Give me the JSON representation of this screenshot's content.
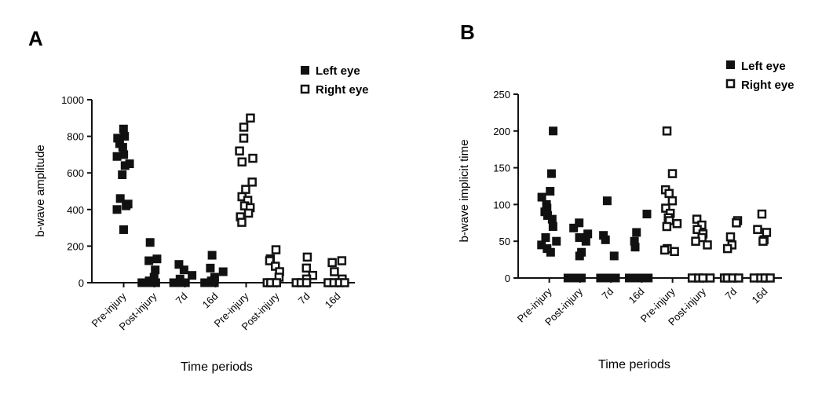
{
  "figure": {
    "panels": [
      {
        "letter": "A"
      },
      {
        "letter": "B"
      }
    ]
  },
  "chart_data": [
    {
      "type": "scatter",
      "panel": "A",
      "title": "",
      "xlabel": "Time periods",
      "ylabel": "b-wave amplitude",
      "ylim": [
        0,
        1000
      ],
      "yticks": [
        0,
        200,
        400,
        600,
        800,
        1000
      ],
      "categories": [
        "Pre-injury",
        "Post-injury",
        "7d",
        "16d",
        "Pre-injury",
        "Post-injury",
        "7d",
        "16d"
      ],
      "legend": {
        "position": "top-right",
        "entries": [
          "Left eye",
          "Right eye"
        ]
      },
      "colors": {
        "left": "#111111",
        "right": "#111111",
        "right_fill": "#ffffff"
      },
      "series": [
        {
          "name": "Left eye",
          "marker": "filled-square",
          "points": [
            {
              "x": "Pre-injury",
              "i": 0,
              "y": 840
            },
            {
              "x": "Pre-injury",
              "i": 0,
              "y": 800
            },
            {
              "x": "Pre-injury",
              "i": 0,
              "y": 790
            },
            {
              "x": "Pre-injury",
              "i": 0,
              "y": 760
            },
            {
              "x": "Pre-injury",
              "i": 0,
              "y": 740
            },
            {
              "x": "Pre-injury",
              "i": 0,
              "y": 700
            },
            {
              "x": "Pre-injury",
              "i": 0,
              "y": 690
            },
            {
              "x": "Pre-injury",
              "i": 0,
              "y": 650
            },
            {
              "x": "Pre-injury",
              "i": 0,
              "y": 640
            },
            {
              "x": "Pre-injury",
              "i": 0,
              "y": 590
            },
            {
              "x": "Pre-injury",
              "i": 0,
              "y": 460
            },
            {
              "x": "Pre-injury",
              "i": 0,
              "y": 430
            },
            {
              "x": "Pre-injury",
              "i": 0,
              "y": 420
            },
            {
              "x": "Pre-injury",
              "i": 0,
              "y": 400
            },
            {
              "x": "Pre-injury",
              "i": 0,
              "y": 290
            },
            {
              "x": "Post-injury",
              "i": 1,
              "y": 220
            },
            {
              "x": "Post-injury",
              "i": 1,
              "y": 130
            },
            {
              "x": "Post-injury",
              "i": 1,
              "y": 120
            },
            {
              "x": "Post-injury",
              "i": 1,
              "y": 70
            },
            {
              "x": "Post-injury",
              "i": 1,
              "y": 30
            },
            {
              "x": "Post-injury",
              "i": 1,
              "y": 10
            },
            {
              "x": "Post-injury",
              "i": 1,
              "y": 0
            },
            {
              "x": "Post-injury",
              "i": 1,
              "y": 0
            },
            {
              "x": "Post-injury",
              "i": 1,
              "y": 0
            },
            {
              "x": "7d",
              "i": 2,
              "y": 100
            },
            {
              "x": "7d",
              "i": 2,
              "y": 70
            },
            {
              "x": "7d",
              "i": 2,
              "y": 40
            },
            {
              "x": "7d",
              "i": 2,
              "y": 20
            },
            {
              "x": "7d",
              "i": 2,
              "y": 0
            },
            {
              "x": "7d",
              "i": 2,
              "y": 0
            },
            {
              "x": "7d",
              "i": 2,
              "y": 0
            },
            {
              "x": "16d",
              "i": 3,
              "y": 150
            },
            {
              "x": "16d",
              "i": 3,
              "y": 80
            },
            {
              "x": "16d",
              "i": 3,
              "y": 60
            },
            {
              "x": "16d",
              "i": 3,
              "y": 30
            },
            {
              "x": "16d",
              "i": 3,
              "y": 10
            },
            {
              "x": "16d",
              "i": 3,
              "y": 0
            },
            {
              "x": "16d",
              "i": 3,
              "y": 0
            },
            {
              "x": "16d",
              "i": 3,
              "y": 0
            }
          ]
        },
        {
          "name": "Right eye",
          "marker": "open-square",
          "points": [
            {
              "x": "Pre-injury",
              "i": 4,
              "y": 900
            },
            {
              "x": "Pre-injury",
              "i": 4,
              "y": 850
            },
            {
              "x": "Pre-injury",
              "i": 4,
              "y": 790
            },
            {
              "x": "Pre-injury",
              "i": 4,
              "y": 720
            },
            {
              "x": "Pre-injury",
              "i": 4,
              "y": 680
            },
            {
              "x": "Pre-injury",
              "i": 4,
              "y": 660
            },
            {
              "x": "Pre-injury",
              "i": 4,
              "y": 550
            },
            {
              "x": "Pre-injury",
              "i": 4,
              "y": 510
            },
            {
              "x": "Pre-injury",
              "i": 4,
              "y": 470
            },
            {
              "x": "Pre-injury",
              "i": 4,
              "y": 450
            },
            {
              "x": "Pre-injury",
              "i": 4,
              "y": 420
            },
            {
              "x": "Pre-injury",
              "i": 4,
              "y": 410
            },
            {
              "x": "Pre-injury",
              "i": 4,
              "y": 380
            },
            {
              "x": "Pre-injury",
              "i": 4,
              "y": 360
            },
            {
              "x": "Pre-injury",
              "i": 4,
              "y": 330
            },
            {
              "x": "Post-injury",
              "i": 5,
              "y": 180
            },
            {
              "x": "Post-injury",
              "i": 5,
              "y": 130
            },
            {
              "x": "Post-injury",
              "i": 5,
              "y": 120
            },
            {
              "x": "Post-injury",
              "i": 5,
              "y": 90
            },
            {
              "x": "Post-injury",
              "i": 5,
              "y": 60
            },
            {
              "x": "Post-injury",
              "i": 5,
              "y": 30
            },
            {
              "x": "Post-injury",
              "i": 5,
              "y": 0
            },
            {
              "x": "Post-injury",
              "i": 5,
              "y": 0
            },
            {
              "x": "Post-injury",
              "i": 5,
              "y": 0
            },
            {
              "x": "7d",
              "i": 6,
              "y": 140
            },
            {
              "x": "7d",
              "i": 6,
              "y": 80
            },
            {
              "x": "7d",
              "i": 6,
              "y": 40
            },
            {
              "x": "7d",
              "i": 6,
              "y": 20
            },
            {
              "x": "7d",
              "i": 6,
              "y": 0
            },
            {
              "x": "7d",
              "i": 6,
              "y": 0
            },
            {
              "x": "7d",
              "i": 6,
              "y": 0
            },
            {
              "x": "16d",
              "i": 7,
              "y": 120
            },
            {
              "x": "16d",
              "i": 7,
              "y": 110
            },
            {
              "x": "16d",
              "i": 7,
              "y": 60
            },
            {
              "x": "16d",
              "i": 7,
              "y": 20
            },
            {
              "x": "16d",
              "i": 7,
              "y": 0
            },
            {
              "x": "16d",
              "i": 7,
              "y": 0
            },
            {
              "x": "16d",
              "i": 7,
              "y": 0
            },
            {
              "x": "16d",
              "i": 7,
              "y": 0
            }
          ]
        }
      ]
    },
    {
      "type": "scatter",
      "panel": "B",
      "title": "",
      "xlabel": "Time periods",
      "ylabel": "b-wave implicit time",
      "ylim": [
        0,
        250
      ],
      "yticks": [
        0,
        50,
        100,
        150,
        200,
        250
      ],
      "categories": [
        "Pre-injury",
        "Post-injury",
        "7d",
        "16d",
        "Pre-injury",
        "Post-injury",
        "7d",
        "16d"
      ],
      "legend": {
        "position": "top-right",
        "entries": [
          "Left eye",
          "Right eye"
        ]
      },
      "colors": {
        "left": "#111111",
        "right": "#111111",
        "right_fill": "#ffffff"
      },
      "series": [
        {
          "name": "Left eye",
          "marker": "filled-square",
          "points": [
            {
              "x": "Pre-injury",
              "i": 0,
              "y": 200
            },
            {
              "x": "Pre-injury",
              "i": 0,
              "y": 142
            },
            {
              "x": "Pre-injury",
              "i": 0,
              "y": 118
            },
            {
              "x": "Pre-injury",
              "i": 0,
              "y": 110
            },
            {
              "x": "Pre-injury",
              "i": 0,
              "y": 100
            },
            {
              "x": "Pre-injury",
              "i": 0,
              "y": 95
            },
            {
              "x": "Pre-injury",
              "i": 0,
              "y": 90
            },
            {
              "x": "Pre-injury",
              "i": 0,
              "y": 85
            },
            {
              "x": "Pre-injury",
              "i": 0,
              "y": 80
            },
            {
              "x": "Pre-injury",
              "i": 0,
              "y": 70
            },
            {
              "x": "Pre-injury",
              "i": 0,
              "y": 55
            },
            {
              "x": "Pre-injury",
              "i": 0,
              "y": 50
            },
            {
              "x": "Pre-injury",
              "i": 0,
              "y": 45
            },
            {
              "x": "Pre-injury",
              "i": 0,
              "y": 40
            },
            {
              "x": "Pre-injury",
              "i": 0,
              "y": 35
            },
            {
              "x": "Post-injury",
              "i": 1,
              "y": 75
            },
            {
              "x": "Post-injury",
              "i": 1,
              "y": 68
            },
            {
              "x": "Post-injury",
              "i": 1,
              "y": 60
            },
            {
              "x": "Post-injury",
              "i": 1,
              "y": 55
            },
            {
              "x": "Post-injury",
              "i": 1,
              "y": 50
            },
            {
              "x": "Post-injury",
              "i": 1,
              "y": 35
            },
            {
              "x": "Post-injury",
              "i": 1,
              "y": 30
            },
            {
              "x": "Post-injury",
              "i": 1,
              "y": 0
            },
            {
              "x": "Post-injury",
              "i": 1,
              "y": 0
            },
            {
              "x": "Post-injury",
              "i": 1,
              "y": 0
            },
            {
              "x": "7d",
              "i": 2,
              "y": 105
            },
            {
              "x": "7d",
              "i": 2,
              "y": 58
            },
            {
              "x": "7d",
              "i": 2,
              "y": 52
            },
            {
              "x": "7d",
              "i": 2,
              "y": 30
            },
            {
              "x": "7d",
              "i": 2,
              "y": 0
            },
            {
              "x": "7d",
              "i": 2,
              "y": 0
            },
            {
              "x": "7d",
              "i": 2,
              "y": 0
            },
            {
              "x": "7d",
              "i": 2,
              "y": 0
            },
            {
              "x": "16d",
              "i": 3,
              "y": 87
            },
            {
              "x": "16d",
              "i": 3,
              "y": 62
            },
            {
              "x": "16d",
              "i": 3,
              "y": 50
            },
            {
              "x": "16d",
              "i": 3,
              "y": 42
            },
            {
              "x": "16d",
              "i": 3,
              "y": 0
            },
            {
              "x": "16d",
              "i": 3,
              "y": 0
            },
            {
              "x": "16d",
              "i": 3,
              "y": 0
            },
            {
              "x": "16d",
              "i": 3,
              "y": 0
            }
          ]
        },
        {
          "name": "Right eye",
          "marker": "open-square",
          "points": [
            {
              "x": "Pre-injury",
              "i": 4,
              "y": 200
            },
            {
              "x": "Pre-injury",
              "i": 4,
              "y": 142
            },
            {
              "x": "Pre-injury",
              "i": 4,
              "y": 120
            },
            {
              "x": "Pre-injury",
              "i": 4,
              "y": 115
            },
            {
              "x": "Pre-injury",
              "i": 4,
              "y": 105
            },
            {
              "x": "Pre-injury",
              "i": 4,
              "y": 95
            },
            {
              "x": "Pre-injury",
              "i": 4,
              "y": 88
            },
            {
              "x": "Pre-injury",
              "i": 4,
              "y": 82
            },
            {
              "x": "Pre-injury",
              "i": 4,
              "y": 78
            },
            {
              "x": "Pre-injury",
              "i": 4,
              "y": 74
            },
            {
              "x": "Pre-injury",
              "i": 4,
              "y": 70
            },
            {
              "x": "Pre-injury",
              "i": 4,
              "y": 40
            },
            {
              "x": "Pre-injury",
              "i": 4,
              "y": 38
            },
            {
              "x": "Pre-injury",
              "i": 4,
              "y": 36
            },
            {
              "x": "Post-injury",
              "i": 5,
              "y": 80
            },
            {
              "x": "Post-injury",
              "i": 5,
              "y": 72
            },
            {
              "x": "Post-injury",
              "i": 5,
              "y": 66
            },
            {
              "x": "Post-injury",
              "i": 5,
              "y": 60
            },
            {
              "x": "Post-injury",
              "i": 5,
              "y": 55
            },
            {
              "x": "Post-injury",
              "i": 5,
              "y": 50
            },
            {
              "x": "Post-injury",
              "i": 5,
              "y": 45
            },
            {
              "x": "Post-injury",
              "i": 5,
              "y": 0
            },
            {
              "x": "Post-injury",
              "i": 5,
              "y": 0
            },
            {
              "x": "Post-injury",
              "i": 5,
              "y": 0
            },
            {
              "x": "Post-injury",
              "i": 5,
              "y": 0
            },
            {
              "x": "7d",
              "i": 6,
              "y": 78
            },
            {
              "x": "7d",
              "i": 6,
              "y": 75
            },
            {
              "x": "7d",
              "i": 6,
              "y": 56
            },
            {
              "x": "7d",
              "i": 6,
              "y": 45
            },
            {
              "x": "7d",
              "i": 6,
              "y": 40
            },
            {
              "x": "7d",
              "i": 6,
              "y": 0
            },
            {
              "x": "7d",
              "i": 6,
              "y": 0
            },
            {
              "x": "7d",
              "i": 6,
              "y": 0
            },
            {
              "x": "7d",
              "i": 6,
              "y": 0
            },
            {
              "x": "16d",
              "i": 7,
              "y": 87
            },
            {
              "x": "16d",
              "i": 7,
              "y": 66
            },
            {
              "x": "16d",
              "i": 7,
              "y": 62
            },
            {
              "x": "16d",
              "i": 7,
              "y": 52
            },
            {
              "x": "16d",
              "i": 7,
              "y": 50
            },
            {
              "x": "16d",
              "i": 7,
              "y": 0
            },
            {
              "x": "16d",
              "i": 7,
              "y": 0
            },
            {
              "x": "16d",
              "i": 7,
              "y": 0
            },
            {
              "x": "16d",
              "i": 7,
              "y": 0
            }
          ]
        }
      ]
    }
  ]
}
